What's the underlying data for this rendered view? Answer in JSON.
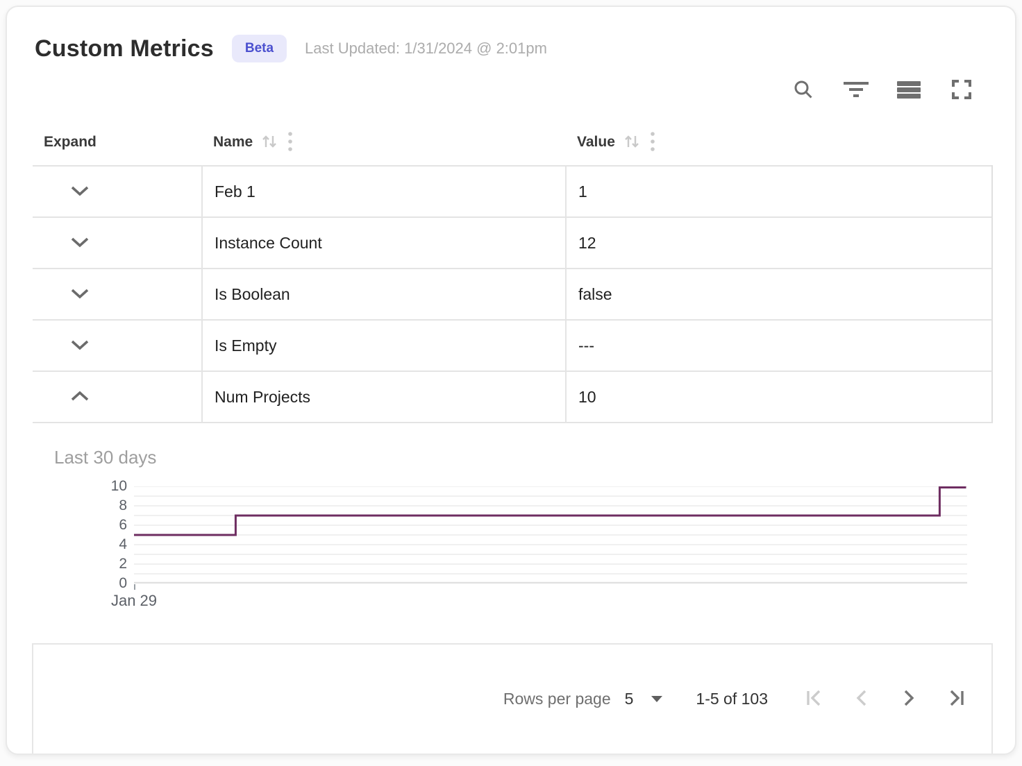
{
  "header": {
    "title": "Custom Metrics",
    "badge": "Beta",
    "last_updated": "Last Updated: 1/31/2024 @ 2:01pm"
  },
  "toolbar": {
    "icons": [
      "search",
      "filter",
      "density",
      "fullscreen"
    ]
  },
  "table": {
    "columns": [
      {
        "label": "Expand",
        "sortable": false
      },
      {
        "label": "Name",
        "sortable": true
      },
      {
        "label": "Value",
        "sortable": true
      }
    ],
    "rows": [
      {
        "name": "Feb 1",
        "value": "1",
        "expanded": false
      },
      {
        "name": "Instance Count",
        "value": "12",
        "expanded": false
      },
      {
        "name": "Is Boolean",
        "value": "false",
        "expanded": false
      },
      {
        "name": "Is Empty",
        "value": "---",
        "expanded": false
      },
      {
        "name": "Num Projects",
        "value": "10",
        "expanded": true
      }
    ]
  },
  "chart_data": {
    "type": "line",
    "subtype": "step",
    "title": "Last 30 days",
    "expanded_row": "Num Projects",
    "ylim": [
      0,
      10
    ],
    "y_ticks": [
      0,
      2,
      4,
      6,
      8,
      10
    ],
    "gridline_step": 1,
    "x_ticks": [
      "Jan 29"
    ],
    "line_color": "#6e2d61",
    "segments": [
      {
        "x_start_frac": 0.0,
        "x_end_frac": 0.122,
        "value": 5
      },
      {
        "x_start_frac": 0.122,
        "x_end_frac": 0.967,
        "value": 7
      },
      {
        "x_start_frac": 0.967,
        "x_end_frac": 1.0,
        "value": 10
      }
    ]
  },
  "footer": {
    "rows_per_page_label": "Rows per page",
    "rows_per_page_value": "5",
    "range_label": "1-5 of 103",
    "pagination": [
      {
        "name": "first-page",
        "enabled": false
      },
      {
        "name": "previous-page",
        "enabled": false
      },
      {
        "name": "next-page",
        "enabled": true
      },
      {
        "name": "last-page",
        "enabled": true
      }
    ]
  },
  "colors": {
    "accent_line": "#6e2d61",
    "badge_bg": "#e9e9fb",
    "badge_text": "#4b50cf",
    "border": "#e4e4e4",
    "icon_gray": "#6f6f6f",
    "icon_disabled": "#c9c9c9",
    "muted_text": "#9e9e9e"
  }
}
